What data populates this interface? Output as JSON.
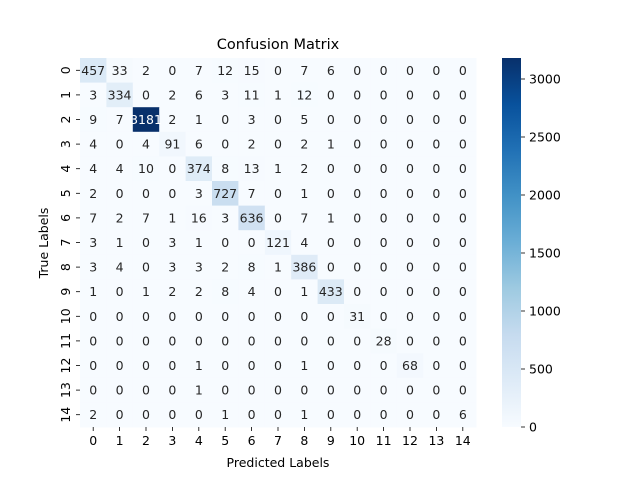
{
  "chart_data": {
    "type": "heatmap",
    "title": "Confusion Matrix",
    "xlabel": "Predicted Labels",
    "ylabel": "True Labels",
    "x_categories": [
      "0",
      "1",
      "2",
      "3",
      "4",
      "5",
      "6",
      "7",
      "8",
      "9",
      "10",
      "11",
      "12",
      "13",
      "14"
    ],
    "y_categories": [
      "0",
      "1",
      "2",
      "3",
      "4",
      "5",
      "6",
      "7",
      "8",
      "9",
      "10",
      "11",
      "12",
      "13",
      "14"
    ],
    "values": [
      [
        457,
        33,
        2,
        0,
        7,
        12,
        15,
        0,
        7,
        6,
        0,
        0,
        0,
        0,
        0
      ],
      [
        3,
        334,
        0,
        2,
        6,
        3,
        11,
        1,
        12,
        0,
        0,
        0,
        0,
        0,
        0
      ],
      [
        9,
        7,
        3181,
        2,
        1,
        0,
        3,
        0,
        5,
        0,
        0,
        0,
        0,
        0,
        0
      ],
      [
        4,
        0,
        4,
        91,
        6,
        0,
        2,
        0,
        2,
        1,
        0,
        0,
        0,
        0,
        0
      ],
      [
        4,
        4,
        10,
        0,
        374,
        8,
        13,
        1,
        2,
        0,
        0,
        0,
        0,
        0,
        0
      ],
      [
        2,
        0,
        0,
        0,
        3,
        727,
        7,
        0,
        1,
        0,
        0,
        0,
        0,
        0,
        0
      ],
      [
        7,
        2,
        7,
        1,
        16,
        3,
        636,
        0,
        7,
        1,
        0,
        0,
        0,
        0,
        0
      ],
      [
        3,
        1,
        0,
        3,
        1,
        0,
        0,
        121,
        4,
        0,
        0,
        0,
        0,
        0,
        0
      ],
      [
        3,
        4,
        0,
        3,
        3,
        2,
        8,
        1,
        386,
        0,
        0,
        0,
        0,
        0,
        0
      ],
      [
        1,
        0,
        1,
        2,
        2,
        8,
        4,
        0,
        1,
        433,
        0,
        0,
        0,
        0,
        0
      ],
      [
        0,
        0,
        0,
        0,
        0,
        0,
        0,
        0,
        0,
        0,
        31,
        0,
        0,
        0,
        0
      ],
      [
        0,
        0,
        0,
        0,
        0,
        0,
        0,
        0,
        0,
        0,
        0,
        28,
        0,
        0,
        0
      ],
      [
        0,
        0,
        0,
        0,
        1,
        0,
        0,
        0,
        1,
        0,
        0,
        0,
        68,
        0,
        0
      ],
      [
        0,
        0,
        0,
        0,
        1,
        0,
        0,
        0,
        0,
        0,
        0,
        0,
        0,
        0,
        0
      ],
      [
        2,
        0,
        0,
        0,
        0,
        1,
        0,
        0,
        1,
        0,
        0,
        0,
        0,
        0,
        6
      ]
    ],
    "colorbar": {
      "range": [
        0,
        3181
      ],
      "ticks": [
        0,
        500,
        1000,
        1500,
        2000,
        2500,
        3000
      ],
      "colormap": "Blues",
      "low_color": "#f7fbff",
      "high_color": "#08306b"
    },
    "grid": false,
    "legend": "colorbar-right"
  }
}
